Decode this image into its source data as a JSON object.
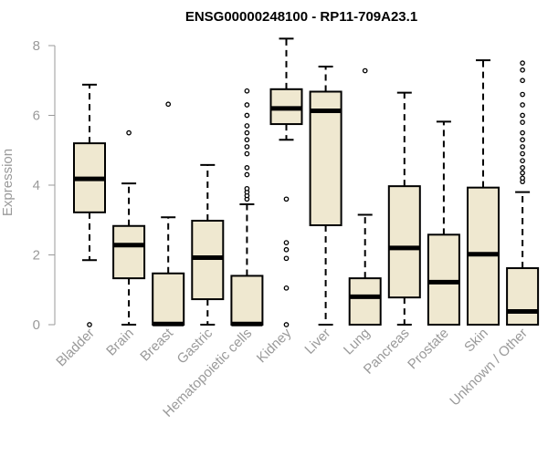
{
  "chart_data": {
    "type": "box",
    "title": "ENSG00000248100 - RP11-709A23.1",
    "xlabel": "",
    "ylabel": "Expression",
    "ylim": [
      0,
      8
    ],
    "yticks": [
      0,
      2,
      4,
      6,
      8
    ],
    "grid": false,
    "legend": "none",
    "box_color": "#efe8d0",
    "categories": [
      "Bladder",
      "Brain",
      "Breast",
      "Gastric",
      "Hematopoietic cells",
      "Kidney",
      "Liver",
      "Lung",
      "Pancreas",
      "Prostate",
      "Skin",
      "Unknown / Other"
    ],
    "boxes": [
      {
        "min": 1.85,
        "q1": 3.22,
        "median": 4.18,
        "q3": 5.2,
        "max": 6.88,
        "outliers": [
          0.0
        ]
      },
      {
        "min": 0.0,
        "q1": 1.33,
        "median": 2.28,
        "q3": 2.83,
        "max": 4.05,
        "outliers": [
          5.5
        ]
      },
      {
        "min": 0.0,
        "q1": 0.0,
        "median": 0.02,
        "q3": 1.47,
        "max": 3.08,
        "outliers": [
          6.32
        ]
      },
      {
        "min": 0.0,
        "q1": 0.73,
        "median": 1.92,
        "q3": 2.98,
        "max": 4.58,
        "outliers": []
      },
      {
        "min": 0.0,
        "q1": 0.0,
        "median": 0.02,
        "q3": 1.4,
        "max": 3.45,
        "outliers": [
          3.6,
          3.7,
          3.8,
          3.9,
          4.3,
          4.5,
          4.9,
          5.1,
          5.3,
          5.5,
          5.7,
          6.0,
          6.3,
          6.7
        ]
      },
      {
        "min": 5.3,
        "q1": 5.75,
        "median": 6.2,
        "q3": 6.75,
        "max": 8.2,
        "outliers": [
          0.0,
          1.05,
          1.9,
          2.15,
          2.35,
          3.6
        ]
      },
      {
        "min": 0.0,
        "q1": 2.85,
        "median": 6.13,
        "q3": 6.68,
        "max": 7.4,
        "outliers": []
      },
      {
        "min": 0.0,
        "q1": 0.0,
        "median": 0.8,
        "q3": 1.33,
        "max": 3.15,
        "outliers": [
          7.28
        ]
      },
      {
        "min": 0.0,
        "q1": 0.78,
        "median": 2.2,
        "q3": 3.97,
        "max": 6.65,
        "outliers": []
      },
      {
        "min": 0.0,
        "q1": 0.0,
        "median": 1.22,
        "q3": 2.58,
        "max": 5.82,
        "outliers": []
      },
      {
        "min": 0.0,
        "q1": 0.0,
        "median": 2.02,
        "q3": 3.93,
        "max": 7.58,
        "outliers": []
      },
      {
        "min": 0.0,
        "q1": 0.0,
        "median": 0.38,
        "q3": 1.62,
        "max": 3.8,
        "outliers": [
          4.1,
          4.2,
          4.35,
          4.5,
          4.7,
          4.9,
          5.1,
          5.3,
          5.5,
          5.8,
          6.0,
          6.3,
          6.6,
          7.0,
          7.3,
          7.5
        ]
      }
    ]
  }
}
